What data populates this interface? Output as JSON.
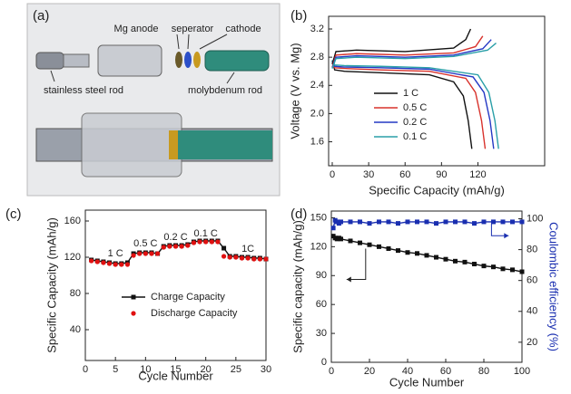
{
  "diagram": {
    "label": "(a)",
    "parts": [
      "Mg anode",
      "seperator",
      "cathode",
      "stainless steel rod",
      "molybdenum rod"
    ]
  },
  "chart_data": [
    {
      "type": "line",
      "label": "(b)",
      "x_label": "Specific Capacity (mAh/g)",
      "y_label": "Voltage (V vs. Mg)",
      "xlim": [
        -3,
        175
      ],
      "xticks": [
        0,
        30,
        60,
        90,
        120
      ],
      "ylim": [
        1.26,
        3.38
      ],
      "yticks": [
        1.6,
        {
          "value": 2,
          "label": "2.0"
        },
        2.4,
        2.8,
        3.2
      ],
      "legend": "lower left",
      "series": [
        {
          "name": "1 C",
          "color": "#111111",
          "x": [
            0,
            2,
            10,
            40,
            80,
            100,
            108,
            112,
            115
          ],
          "values": [
            2.75,
            2.62,
            2.6,
            2.58,
            2.55,
            2.45,
            2.25,
            1.9,
            1.5
          ]
        },
        {
          "name": "0.5 C",
          "color": "#d8322c",
          "x": [
            0,
            2,
            10,
            40,
            80,
            110,
            118,
            123,
            126
          ],
          "values": [
            2.72,
            2.65,
            2.64,
            2.62,
            2.6,
            2.5,
            2.3,
            1.9,
            1.5
          ]
        },
        {
          "name": "0.2 C",
          "color": "#2438c4",
          "x": [
            0,
            2,
            10,
            40,
            80,
            116,
            125,
            130,
            133
          ],
          "values": [
            2.74,
            2.67,
            2.66,
            2.65,
            2.63,
            2.52,
            2.3,
            1.9,
            1.5
          ]
        },
        {
          "name": "0.1 C",
          "color": "#2a9fa8",
          "x": [
            0,
            2,
            10,
            40,
            80,
            120,
            129,
            134,
            137
          ],
          "values": [
            2.76,
            2.69,
            2.68,
            2.67,
            2.65,
            2.55,
            2.3,
            1.9,
            1.5
          ]
        }
      ],
      "charge_series": [
        {
          "color": "#111111",
          "x": [
            0,
            3,
            20,
            60,
            100,
            110,
            114
          ],
          "values": [
            2.7,
            2.88,
            2.9,
            2.88,
            2.93,
            3.05,
            3.2
          ]
        },
        {
          "color": "#d8322c",
          "x": [
            0,
            3,
            20,
            60,
            100,
            118,
            124
          ],
          "values": [
            2.66,
            2.83,
            2.85,
            2.83,
            2.86,
            2.95,
            3.1
          ]
        },
        {
          "color": "#2438c4",
          "x": [
            0,
            3,
            20,
            60,
            100,
            124,
            131
          ],
          "values": [
            2.65,
            2.8,
            2.82,
            2.8,
            2.83,
            2.92,
            3.05
          ]
        },
        {
          "color": "#2a9fa8",
          "x": [
            0,
            3,
            20,
            60,
            100,
            128,
            135
          ],
          "values": [
            2.64,
            2.78,
            2.8,
            2.78,
            2.81,
            2.9,
            3.0
          ]
        }
      ]
    },
    {
      "type": "line",
      "label": "(c)",
      "x_label": "Cycle Number",
      "y_label": "Specific Capacity (mAh/g)",
      "xlim": [
        0,
        30
      ],
      "xticks": [
        0,
        5,
        10,
        15,
        20,
        25,
        30
      ],
      "ylim": [
        6,
        172
      ],
      "yticks": [
        40,
        80,
        120,
        160
      ],
      "legend": "lower left",
      "annotations": [
        "1 C",
        "0.5 C",
        "0.2 C",
        "0.1 C",
        "1C"
      ],
      "x": [
        1,
        2,
        3,
        4,
        5,
        6,
        7,
        8,
        9,
        10,
        11,
        12,
        13,
        14,
        15,
        16,
        17,
        18,
        19,
        20,
        21,
        22,
        23,
        24,
        25,
        26,
        27,
        28,
        29,
        30
      ],
      "series": [
        {
          "name": "Charge Capacity",
          "color": "#111111",
          "marker": "square",
          "line": true,
          "values": [
            117,
            116,
            115,
            114,
            113,
            113,
            114,
            124,
            125,
            125,
            125,
            124,
            132,
            133,
            133,
            133,
            134,
            137,
            138,
            138,
            138,
            138,
            130,
            121,
            121,
            120,
            120,
            119,
            119,
            118
          ]
        },
        {
          "name": "Discharge Capacity",
          "color": "#e01010",
          "marker": "circle",
          "line": false,
          "values": [
            116,
            115,
            114,
            113,
            112,
            112,
            112,
            122,
            124,
            124,
            124,
            124,
            131,
            132,
            132,
            132,
            133,
            136,
            137,
            137,
            137,
            137,
            121,
            120,
            120,
            119,
            119,
            118,
            118,
            118
          ]
        }
      ]
    },
    {
      "type": "line",
      "label": "(d)",
      "x_label": "Cycle Number",
      "y_label": "Specific capacity (mAh/g)",
      "y2_label": "Coulombic efficiency (%)",
      "xlim": [
        0,
        100
      ],
      "xticks": [
        0,
        20,
        40,
        60,
        80,
        100
      ],
      "ylim": [
        0,
        157
      ],
      "yticks": [
        0,
        30,
        60,
        90,
        120,
        150
      ],
      "y2lim": [
        7,
        105
      ],
      "y2ticks": [
        20,
        40,
        60,
        80,
        100
      ],
      "x": [
        1,
        2,
        3,
        4,
        5,
        10,
        15,
        20,
        25,
        30,
        35,
        40,
        45,
        50,
        55,
        60,
        65,
        70,
        75,
        80,
        85,
        90,
        95,
        100
      ],
      "series": [
        {
          "color": "#111111",
          "marker": "square",
          "line": true,
          "values": [
            131,
            129,
            128,
            129,
            128,
            126,
            124,
            122,
            120,
            118,
            116,
            114,
            113,
            111,
            109,
            107,
            105,
            104,
            102,
            100,
            99,
            97,
            96,
            94
          ]
        },
        {
          "color": "#1a2fb0",
          "marker": "square",
          "line": true,
          "axis": "y2",
          "values": [
            94,
            99,
            98,
            97,
            98,
            98,
            98,
            97,
            98,
            98,
            97,
            98,
            98,
            98,
            97,
            98,
            98,
            98,
            97,
            98,
            98,
            98,
            98,
            98
          ]
        }
      ]
    }
  ]
}
